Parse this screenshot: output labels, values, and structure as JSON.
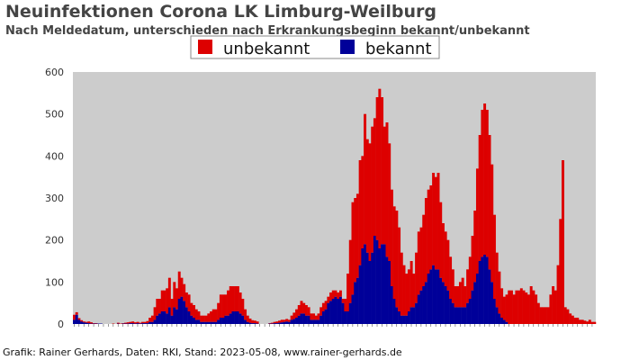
{
  "colors": {
    "unknown": "#dd0000",
    "known": "#000099",
    "plot_bg": "#cccccc",
    "text": "#444444"
  },
  "chart_data": {
    "type": "bar",
    "title": "Neuinfektionen Corona LK Limburg-Weilburg",
    "subtitle": "Nach Meldedatum, unterschieden nach Erkrankungsbeginn bekannt/unbekannt",
    "footer": "Grafik: Rainer Gerhards, Daten: RKI, Stand: 2023-05-08, www.rainer-gerhards.de",
    "stacked": true,
    "ylim": [
      0,
      600
    ],
    "yticks": [
      0,
      100,
      200,
      300,
      400,
      500,
      600
    ],
    "legend_position": "top",
    "legend": [
      "unbekannt",
      "bekannt"
    ],
    "series": [
      {
        "name": "unbekannt",
        "color": "#dd0000",
        "values": [
          12,
          6,
          4,
          3,
          2,
          2,
          4,
          3,
          1,
          1,
          0,
          0,
          0,
          0,
          0,
          0,
          1,
          0,
          2,
          1,
          1,
          2,
          3,
          3,
          4,
          3,
          3,
          2,
          3,
          3,
          5,
          10,
          15,
          30,
          40,
          35,
          50,
          50,
          60,
          70,
          40,
          60,
          50,
          65,
          45,
          40,
          35,
          40,
          30,
          30,
          25,
          20,
          15,
          15,
          15,
          20,
          25,
          30,
          30,
          40,
          55,
          55,
          50,
          60,
          65,
          60,
          60,
          60,
          50,
          40,
          25,
          15,
          10,
          7,
          6,
          5,
          0,
          0,
          0,
          0,
          1,
          2,
          3,
          4,
          5,
          6,
          5,
          6,
          5,
          10,
          15,
          20,
          25,
          30,
          25,
          25,
          20,
          15,
          15,
          10,
          15,
          20,
          20,
          20,
          15,
          20,
          20,
          15,
          15,
          15,
          10,
          30,
          90,
          150,
          220,
          200,
          200,
          250,
          220,
          310,
          270,
          280,
          300,
          280,
          340,
          380,
          350,
          280,
          320,
          280,
          230,
          220,
          230,
          200,
          150,
          120,
          100,
          100,
          110,
          80,
          120,
          150,
          150,
          170,
          200,
          200,
          200,
          220,
          220,
          230,
          180,
          140,
          130,
          120,
          100,
          80,
          50,
          50,
          60,
          70,
          50,
          80,
          100,
          130,
          170,
          250,
          300,
          350,
          360,
          350,
          320,
          280,
          200,
          130,
          100,
          70,
          55,
          65,
          80,
          80,
          70,
          80,
          80,
          85,
          80,
          75,
          70,
          90,
          80,
          70,
          50,
          40,
          40,
          40,
          40,
          70,
          90,
          80,
          140,
          250,
          390,
          40,
          35,
          25,
          20,
          15,
          15,
          10,
          10,
          8,
          6,
          10,
          5,
          5
        ]
      },
      {
        "name": "bekannt",
        "color": "#000099",
        "values": [
          10,
          22,
          10,
          6,
          4,
          3,
          2,
          1,
          1,
          1,
          1,
          1,
          0,
          0,
          0,
          0,
          0,
          0,
          1,
          0,
          1,
          1,
          1,
          2,
          2,
          1,
          2,
          1,
          2,
          2,
          2,
          5,
          5,
          10,
          20,
          25,
          30,
          30,
          25,
          40,
          20,
          40,
          35,
          60,
          65,
          55,
          40,
          30,
          20,
          15,
          10,
          10,
          5,
          5,
          5,
          5,
          5,
          5,
          5,
          10,
          15,
          15,
          20,
          20,
          25,
          30,
          30,
          30,
          25,
          20,
          10,
          5,
          3,
          2,
          2,
          1,
          0,
          0,
          0,
          0,
          1,
          1,
          2,
          2,
          3,
          4,
          5,
          6,
          5,
          10,
          12,
          15,
          20,
          25,
          25,
          20,
          20,
          10,
          10,
          10,
          10,
          20,
          30,
          35,
          50,
          55,
          60,
          65,
          60,
          65,
          50,
          30,
          30,
          50,
          70,
          100,
          110,
          140,
          180,
          190,
          170,
          150,
          170,
          210,
          200,
          180,
          190,
          190,
          160,
          150,
          90,
          60,
          40,
          30,
          20,
          20,
          20,
          30,
          40,
          40,
          50,
          70,
          80,
          90,
          100,
          120,
          130,
          140,
          130,
          130,
          110,
          100,
          90,
          80,
          60,
          50,
          40,
          40,
          40,
          40,
          40,
          50,
          60,
          80,
          100,
          120,
          150,
          160,
          165,
          160,
          130,
          100,
          60,
          40,
          25,
          15,
          10,
          5,
          0,
          0,
          0,
          0,
          0,
          0,
          0,
          0,
          0,
          0,
          0,
          0,
          0,
          0,
          0,
          0,
          0,
          0,
          0,
          0,
          0,
          0,
          0,
          0,
          0,
          0,
          0,
          0,
          0,
          0,
          0,
          0,
          0,
          0,
          0,
          0
        ]
      }
    ]
  }
}
